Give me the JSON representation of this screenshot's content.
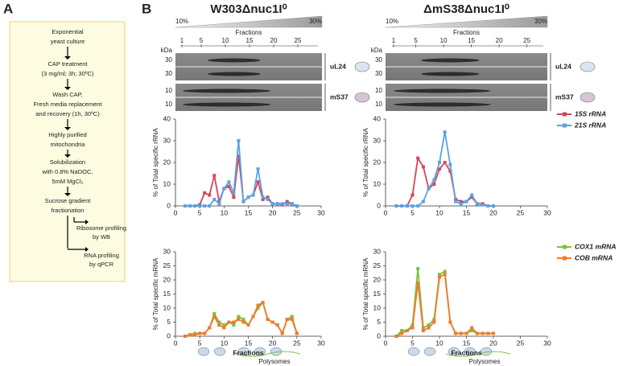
{
  "panel_a": {
    "label": "A",
    "steps": [
      [
        "Exponential",
        "yeast culture"
      ],
      [
        "CAP treatment",
        "(3 mg/ml; 3h; 30ºC)"
      ],
      [
        "Wash CAP,",
        "Fresh media replacement",
        "and recovery (1h, 30ºC)"
      ],
      [
        "Highly purified",
        "mitochondria"
      ],
      [
        "Solubilization",
        "with 0.8% NaDOC,",
        "5mM MgCl₂"
      ],
      [
        "Sucrose gradient",
        "fractionation"
      ]
    ],
    "branches": [
      [
        "Ribosome profiling",
        "by WB"
      ],
      [
        "RNA profiling",
        "by qPCR"
      ]
    ]
  },
  "panel_b": {
    "label": "B",
    "columns": [
      {
        "title": "W303Δnuc1I⁰",
        "gradient": [
          "10%",
          "30%"
        ],
        "fractions_label": "Fractions",
        "fraction_ticks": [
          1,
          5,
          10,
          15,
          20,
          25
        ],
        "kda": "kDa",
        "blots": [
          {
            "name": "uL24",
            "markers": [
              30,
              30
            ]
          },
          {
            "name": "mS37",
            "markers": [
              10,
              10
            ]
          }
        ],
        "polysomes": "Polysomes"
      },
      {
        "title": "ΔmS38Δnuc1I⁰",
        "gradient": [
          "10%",
          "30%"
        ],
        "fractions_label": "Fractions",
        "fraction_ticks": [
          1,
          5,
          10,
          15,
          20,
          25
        ],
        "kda": "kDa",
        "blots": [
          {
            "name": "uL24",
            "markers": [
              30,
              30
            ]
          },
          {
            "name": "mS37",
            "markers": [
              10,
              10
            ]
          }
        ],
        "polysomes": "Polysomes"
      }
    ]
  },
  "chart_data": [
    {
      "type": "line",
      "y_label": "% of Total specific rRNA",
      "xlim": [
        0,
        30
      ],
      "xticks": [
        0,
        5,
        10,
        15,
        20,
        25,
        30
      ],
      "ylim": [
        0,
        40
      ],
      "yticks": [
        0,
        10,
        20,
        30,
        40
      ],
      "x": [
        2,
        3,
        4,
        5,
        6,
        7,
        8,
        9,
        10,
        11,
        12,
        13,
        14,
        15,
        16,
        17,
        18,
        19,
        20,
        21,
        22,
        23,
        24,
        25
      ],
      "series": [
        {
          "color": "#d6455a",
          "values": [
            0,
            0,
            0,
            0.5,
            6,
            5,
            14,
            2,
            8,
            9,
            4,
            23,
            2,
            4,
            5,
            11,
            3,
            4,
            1,
            1,
            0.5,
            2,
            1,
            0
          ]
        },
        {
          "color": "#5ba3e0",
          "values": [
            0,
            0,
            0,
            0,
            0,
            0,
            3,
            1,
            8,
            11,
            6,
            30,
            2,
            4,
            5,
            17,
            4,
            3,
            1,
            1,
            1,
            1,
            1,
            0
          ]
        }
      ]
    },
    {
      "type": "line",
      "y_label": "% of Total specific rRNA",
      "xlim": [
        0,
        30
      ],
      "xticks": [
        0,
        5,
        10,
        15,
        20,
        25,
        30
      ],
      "ylim": [
        0,
        40
      ],
      "yticks": [
        0,
        10,
        20,
        30,
        40
      ],
      "x": [
        2,
        3,
        4,
        5,
        6,
        7,
        8,
        9,
        10,
        11,
        12,
        13,
        14,
        15,
        16,
        17,
        18,
        19,
        20
      ],
      "series": [
        {
          "name": "15S rRNA",
          "color": "#d6455a",
          "values": [
            0,
            0,
            0,
            5,
            22,
            18,
            8,
            10,
            17,
            20,
            16,
            3,
            2,
            2,
            4,
            1,
            1,
            0,
            0
          ]
        },
        {
          "name": "21S rRNA",
          "color": "#5ba3e0",
          "values": [
            0,
            0,
            0,
            0,
            0,
            2,
            8,
            12,
            20,
            34,
            19,
            2,
            1,
            2,
            5,
            1,
            0.5,
            0,
            0
          ]
        }
      ]
    },
    {
      "type": "line",
      "y_label": "% of Total specific mRNA",
      "x_label": "Fractions",
      "xlim": [
        0,
        30
      ],
      "xticks": [
        0,
        5,
        10,
        15,
        20,
        25,
        30
      ],
      "ylim": [
        0,
        30
      ],
      "yticks": [
        0,
        5,
        10,
        15,
        20,
        25,
        30
      ],
      "x": [
        2,
        3,
        4,
        5,
        6,
        7,
        8,
        9,
        10,
        11,
        12,
        13,
        14,
        15,
        16,
        17,
        18,
        19,
        20,
        21,
        22,
        23,
        24,
        25
      ],
      "series": [
        {
          "color": "#7cc242",
          "values": [
            0,
            0.5,
            1,
            1,
            1,
            3,
            8,
            5,
            4,
            5,
            4,
            7,
            6,
            4,
            7,
            10,
            12,
            6,
            5,
            4,
            1,
            6,
            7,
            1
          ]
        },
        {
          "color": "#f07a2a",
          "values": [
            0,
            0.5,
            0.5,
            1,
            1,
            3,
            7,
            4,
            3,
            5,
            5,
            6,
            5,
            4,
            7,
            11,
            12,
            6,
            5,
            4,
            1,
            6,
            6,
            1
          ]
        }
      ]
    },
    {
      "type": "line",
      "y_label": "% of Total specific mRNA",
      "x_label": "Fractions",
      "xlim": [
        0,
        30
      ],
      "xticks": [
        0,
        5,
        10,
        15,
        20,
        25,
        30
      ],
      "ylim": [
        0,
        30
      ],
      "yticks": [
        0,
        5,
        10,
        15,
        20,
        25,
        30
      ],
      "x": [
        2,
        3,
        4,
        5,
        6,
        7,
        8,
        9,
        10,
        11,
        12,
        13,
        14,
        15,
        16,
        17,
        18,
        19,
        20
      ],
      "series": [
        {
          "name": "COX1 mRNA",
          "color": "#7cc242",
          "values": [
            0,
            2,
            2,
            4,
            24,
            3,
            4,
            6,
            22,
            23,
            5,
            1,
            1,
            1,
            2,
            1,
            1,
            1,
            1
          ]
        },
        {
          "name": "COB mRNA",
          "color": "#f07a2a",
          "values": [
            0,
            1,
            2,
            3,
            19,
            2,
            3,
            5,
            21,
            22,
            5,
            1,
            1,
            1,
            3,
            1,
            1,
            1,
            1
          ]
        }
      ]
    }
  ]
}
